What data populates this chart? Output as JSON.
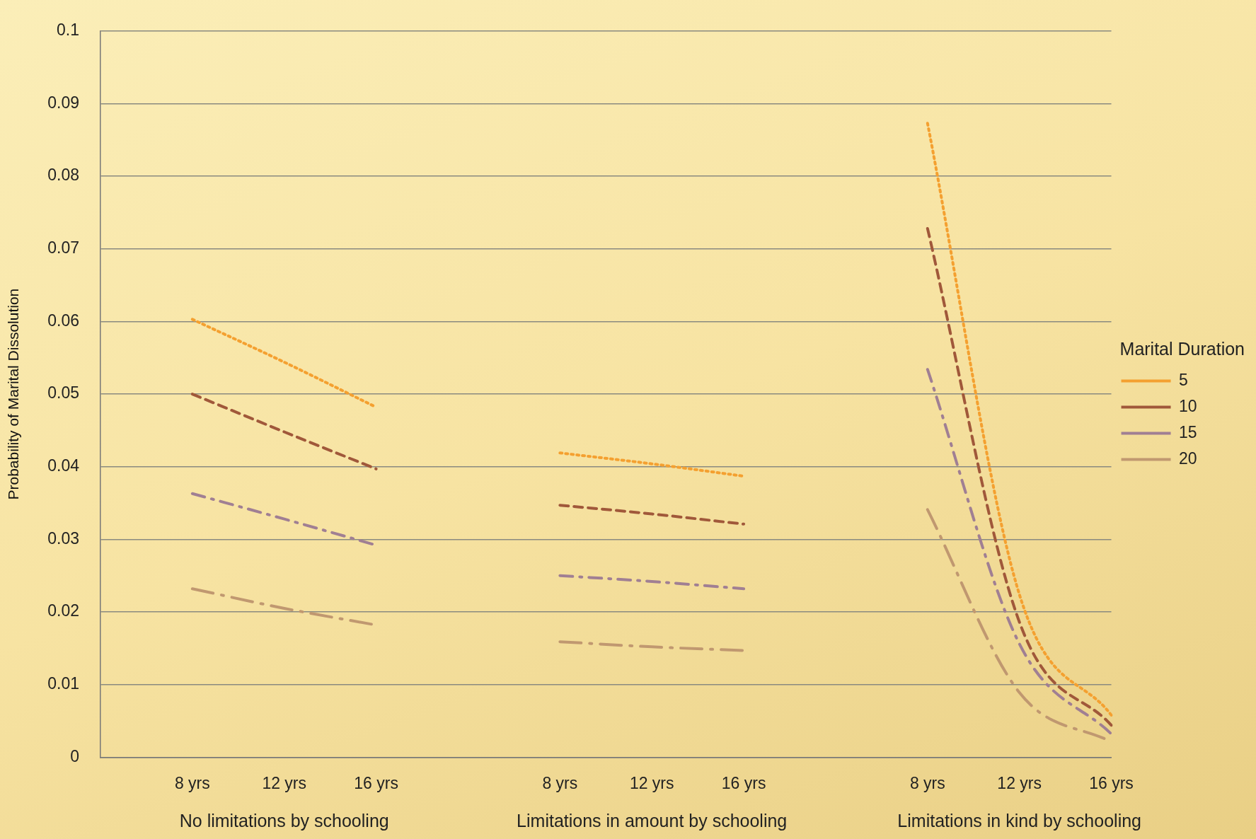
{
  "chart_data": {
    "type": "line",
    "ylabel": "Probability of Marital Dissolution",
    "legend_title": "Marital Duration",
    "legend": "right",
    "categories": [
      null,
      "8 yrs",
      "12 yrs",
      "16 yrs",
      null,
      "8 yrs",
      "12 yrs",
      "16 yrs",
      null,
      "8 yrs",
      "12 yrs",
      "16 yrs"
    ],
    "annotations": [
      "No limitations by schooling",
      "Limitations in amount by schooling",
      "Limitations in kind by schooling"
    ],
    "ylim": [
      0,
      0.1
    ],
    "yticks": [
      0,
      0.01,
      0.02,
      0.03,
      0.04,
      0.05,
      0.06,
      0.07,
      0.08,
      0.09,
      0.1
    ],
    "grid": "y",
    "marker": "none",
    "series": [
      {
        "name": "5",
        "color": "#f4a030",
        "line_style": "dotted",
        "values": [
          null,
          0.0603,
          0.0544,
          0.0482,
          null,
          0.0419,
          0.0404,
          0.0387,
          null,
          0.0873,
          0.0224,
          0.0058
        ]
      },
      {
        "name": "10",
        "color": "#a0583a",
        "line_style": "dashed",
        "values": [
          null,
          0.05,
          0.0448,
          0.0397,
          null,
          0.0347,
          0.0335,
          0.0321,
          null,
          0.0728,
          0.0186,
          0.0044
        ]
      },
      {
        "name": "15",
        "color": "#a07f93",
        "line_style": "dashdot",
        "values": [
          null,
          0.0363,
          0.0328,
          0.0292,
          null,
          0.025,
          0.0242,
          0.0232,
          null,
          0.0534,
          0.0156,
          0.0032
        ]
      },
      {
        "name": "20",
        "color": "#c09870",
        "line_style": "longdashdot",
        "values": [
          null,
          0.0232,
          0.0205,
          0.0182,
          null,
          0.0159,
          0.0152,
          0.0147,
          null,
          0.0341,
          0.0089,
          0.0021
        ]
      }
    ]
  }
}
